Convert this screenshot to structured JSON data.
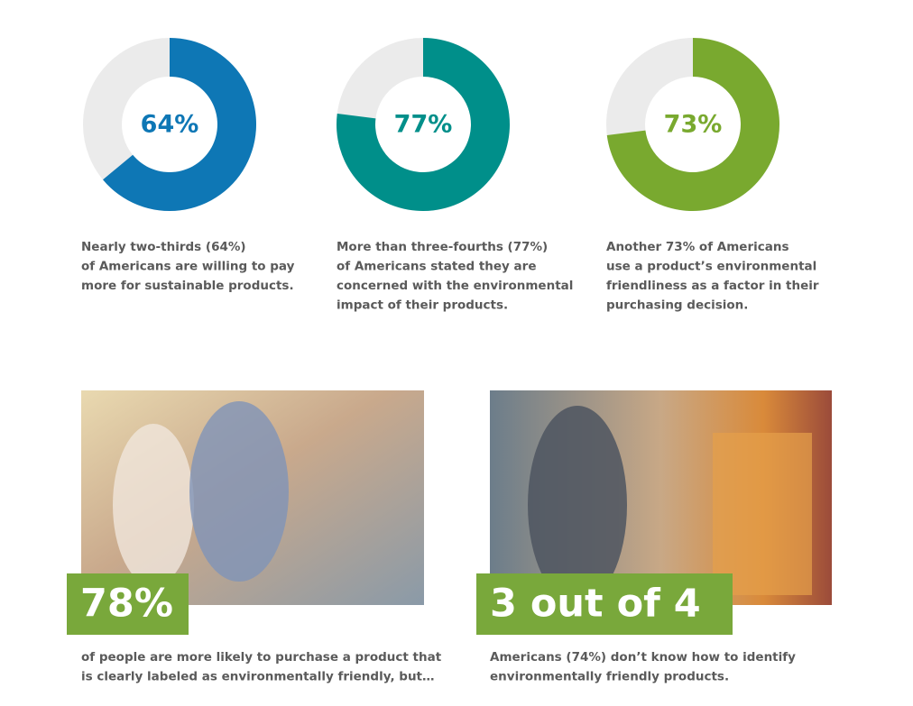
{
  "chart_data": [
    {
      "type": "donut",
      "values": [
        64
      ],
      "value_labels": [
        "64%"
      ],
      "color": "#0e77b5",
      "caption": [
        "Nearly two-thirds (64%)",
        "of Americans are willing to pay",
        "more for sustainable products."
      ]
    },
    {
      "type": "donut",
      "values": [
        77
      ],
      "value_labels": [
        "77%"
      ],
      "color": "#008f8a",
      "caption": [
        "More than three-fourths (77%)",
        "of Americans stated they are",
        "concerned with the environmental",
        "impact of their products."
      ]
    },
    {
      "type": "donut",
      "values": [
        73
      ],
      "value_labels": [
        "73%"
      ],
      "color": "#79a92f",
      "caption": [
        "Another 73% of Americans",
        "use a product’s environmental",
        "friendliness as a factor in their",
        "purchasing decision."
      ]
    }
  ],
  "stats": [
    {
      "headline": "78%",
      "caption": [
        "of people are more likely to purchase a product that",
        "is clearly labeled as environmentally friendly, but…"
      ]
    },
    {
      "headline": "3 out of 4",
      "caption": [
        "Americans (74%) don’t know how to identify",
        "environmentally friendly products."
      ]
    }
  ]
}
